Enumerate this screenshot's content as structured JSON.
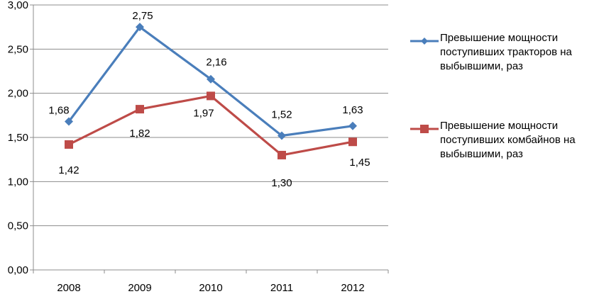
{
  "chart_data": {
    "type": "line",
    "title": "",
    "xlabel": "",
    "ylabel": "",
    "categories": [
      "2008",
      "2009",
      "2010",
      "2011",
      "2012"
    ],
    "ylim": [
      0,
      3
    ],
    "ytick_labels": [
      "0,00",
      "0,50",
      "1,00",
      "1,50",
      "2,00",
      "2,50",
      "3,00"
    ],
    "ytick_values": [
      0,
      0.5,
      1.0,
      1.5,
      2.0,
      2.5,
      3.0
    ],
    "grid": true,
    "legend_position": "right",
    "series": [
      {
        "name": "Превышение мощности поступивших тракторов на выбывшими, раз",
        "name_lines": [
          "Превышение мощности",
          "поступивших тракторов на",
          "выбывшими, раз"
        ],
        "color": "#4A7EBB",
        "marker": "diamond",
        "values": [
          1.68,
          2.75,
          2.16,
          1.52,
          1.63
        ],
        "labels": [
          "1,68",
          "2,75",
          "2,16",
          "1,52",
          "1,63"
        ]
      },
      {
        "name": "Превышение мощности поступивших комбайнов на выбывшими, раз",
        "name_lines": [
          "Превышение мощности",
          "поступивших комбайнов на",
          "выбывшими, раз"
        ],
        "color": "#BE4B48",
        "marker": "square",
        "values": [
          1.42,
          1.82,
          1.97,
          1.3,
          1.45
        ],
        "labels": [
          "1,42",
          "1,82",
          "1,97",
          "1,30",
          "1,45"
        ]
      }
    ]
  }
}
